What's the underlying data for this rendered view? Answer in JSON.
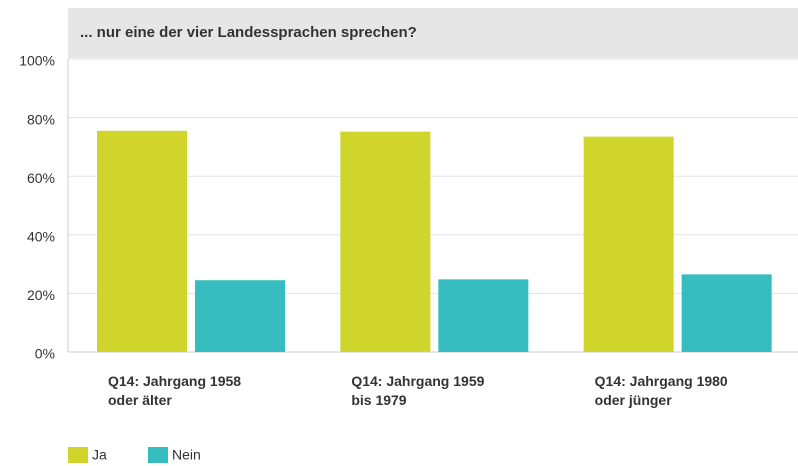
{
  "chart_data": {
    "type": "bar",
    "title": "... nur eine der vier Landessprachen sprechen?",
    "categories": [
      "Q14: Jahrgang 1958 oder älter",
      "Q14: Jahrgang 1959 bis 1979",
      "Q14: Jahrgang 1980 oder jünger"
    ],
    "series": [
      {
        "name": "Ja",
        "color": "#cfd52b",
        "values": [
          75.5,
          75.2,
          73.5
        ]
      },
      {
        "name": "Nein",
        "color": "#35bdbf",
        "values": [
          24.5,
          24.8,
          26.5
        ]
      }
    ],
    "ylim": [
      0,
      100
    ],
    "yticks": [
      {
        "value": 0,
        "label": "0%"
      },
      {
        "value": 20,
        "label": "20%"
      },
      {
        "value": 40,
        "label": "40%"
      },
      {
        "value": 60,
        "label": "60%"
      },
      {
        "value": 80,
        "label": "80%"
      },
      {
        "value": 100,
        "label": "100%"
      }
    ],
    "grid": true,
    "legend": "bottom-left"
  }
}
